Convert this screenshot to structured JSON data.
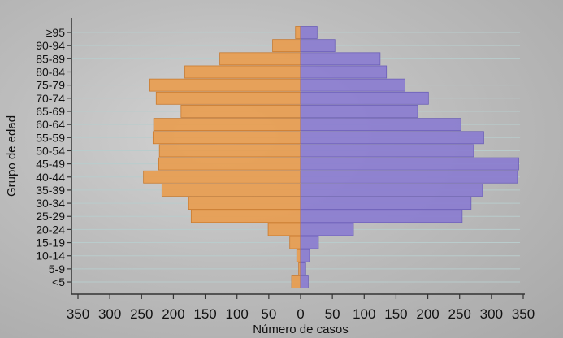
{
  "chart_data": {
    "type": "bar",
    "orientation": "horizontal-pyramid",
    "xlabel": "Número de casos",
    "ylabel": "Grupo de edad",
    "xlim": [
      -350,
      350
    ],
    "x_ticks": [
      "350",
      "300",
      "250",
      "200",
      "150",
      "100",
      "50",
      "0",
      "50",
      "100",
      "150",
      "200",
      "250",
      "300",
      "350"
    ],
    "categories": [
      "<5",
      "5-9",
      "10-14",
      "15-19",
      "20-24",
      "25-29",
      "30-34",
      "35-39",
      "40-44",
      "45-49",
      "50-54",
      "55-59",
      "60-64",
      "65-69",
      "70-74",
      "75-79",
      "80-84",
      "85-89",
      "90-94",
      "≥95"
    ],
    "series": [
      {
        "side": "left",
        "color": "#e99c4e",
        "values": [
          14,
          3,
          6,
          17,
          51,
          172,
          176,
          218,
          247,
          223,
          222,
          232,
          231,
          188,
          227,
          237,
          182,
          127,
          44,
          8
        ]
      },
      {
        "side": "right",
        "color": "#8a7bd0",
        "values": [
          12,
          8,
          14,
          28,
          83,
          254,
          268,
          286,
          341,
          343,
          272,
          288,
          252,
          184,
          201,
          164,
          135,
          125,
          54,
          26
        ]
      }
    ],
    "grid": true,
    "legend": "none"
  }
}
